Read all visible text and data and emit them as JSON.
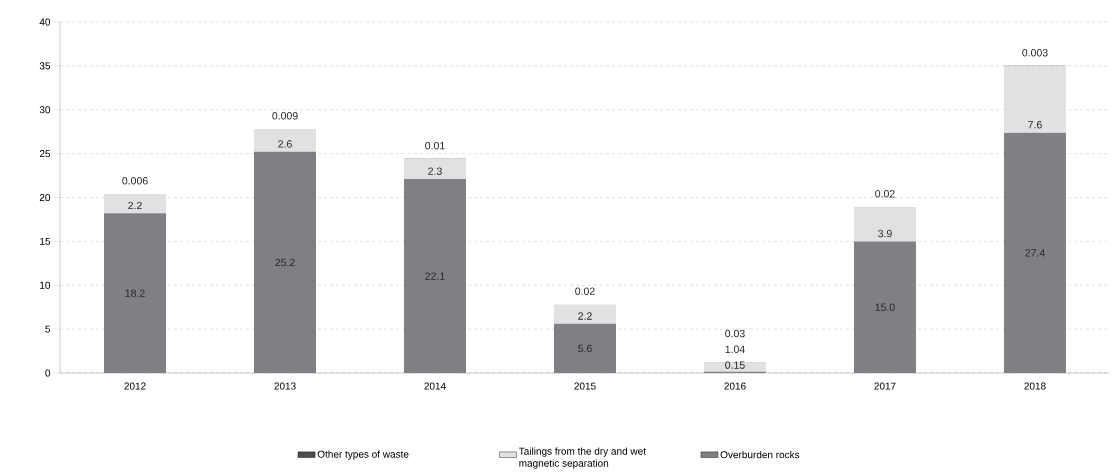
{
  "chart_data": {
    "type": "bar",
    "stacked": true,
    "categories": [
      "2012",
      "2013",
      "2014",
      "2015",
      "2016",
      "2017",
      "2018"
    ],
    "series": [
      {
        "name": "Overburden rocks",
        "color": "#808084",
        "values": [
          18.2,
          25.2,
          22.1,
          5.6,
          0.15,
          15.0,
          27.4
        ],
        "value_labels": [
          "18.2",
          "25.2",
          "22.1",
          "5.6",
          "0.15",
          "15.0",
          "27.4"
        ]
      },
      {
        "name": "Tailings from the dry and wet magnetic separation",
        "color": "#e0e1e2",
        "values": [
          2.2,
          2.6,
          2.3,
          2.2,
          1.04,
          3.9,
          7.6
        ],
        "value_labels": [
          "2.2",
          "2.6",
          "2.3",
          "2.2",
          "1.04",
          "3.9",
          "7.6"
        ]
      },
      {
        "name": "Other types of waste",
        "color": "#4d4d4f",
        "values": [
          0.006,
          0.009,
          0.01,
          0.02,
          0.03,
          0.02,
          0.003
        ],
        "value_labels": [
          "0.006",
          "0.009",
          "0.01",
          "0.02",
          "0.03",
          "0.02",
          "0.003"
        ]
      }
    ],
    "ylim": [
      0,
      40
    ],
    "yticks": [
      0,
      5,
      10,
      15,
      20,
      25,
      30,
      35,
      40
    ],
    "grid": "y",
    "legend": "bottom"
  }
}
